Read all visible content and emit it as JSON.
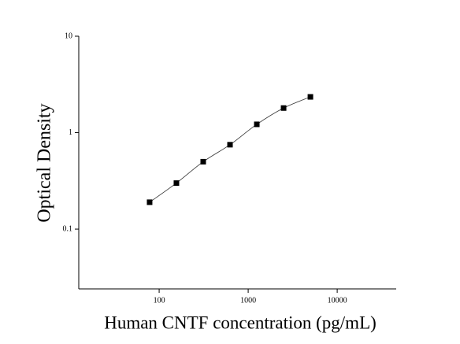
{
  "chart_data": {
    "type": "scatter",
    "x_label": "Human CNTF concentration (pg/mL)",
    "y_label": "Optical Density",
    "x": [
      78.125,
      156.25,
      312.5,
      625,
      1250,
      2500,
      5000
    ],
    "values": [
      0.19,
      0.3,
      0.5,
      0.75,
      1.22,
      1.8,
      2.35
    ],
    "color": "#000000",
    "fit_line": true,
    "xscale": "log",
    "yscale": "log",
    "xlim": [
      12.5,
      46000
    ],
    "ylim": [
      0.024,
      10
    ],
    "xticks": [
      100,
      1000,
      10000
    ],
    "yticks": [
      0.1,
      1,
      10
    ]
  }
}
